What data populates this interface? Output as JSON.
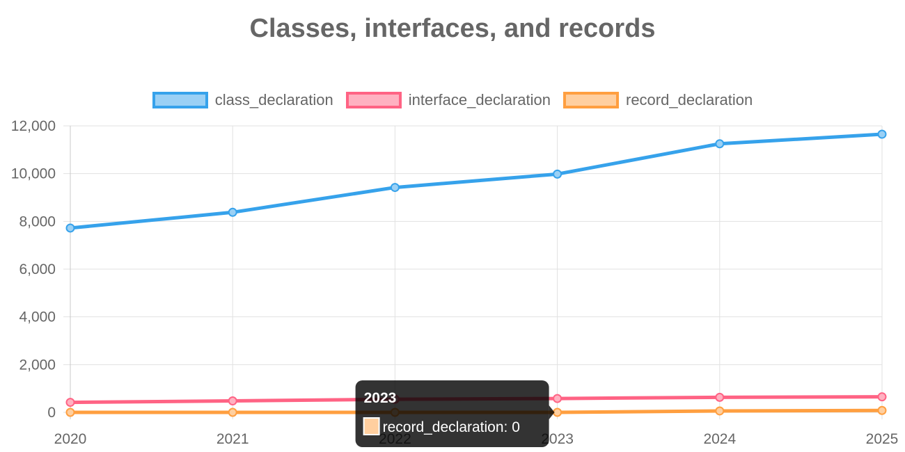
{
  "chart_data": {
    "type": "line",
    "title": "Classes, interfaces, and records",
    "x": [
      "2020",
      "2021",
      "2022",
      "2023",
      "2024",
      "2025"
    ],
    "ylim": [
      0,
      12000
    ],
    "yticks": [
      0,
      2000,
      4000,
      6000,
      8000,
      10000,
      12000
    ],
    "ytick_labels": [
      "0",
      "2,000",
      "4,000",
      "6,000",
      "8,000",
      "10,000",
      "12,000"
    ],
    "grid": true,
    "legend_position": "top",
    "series": [
      {
        "name": "class_declaration",
        "color": "#36a2eb",
        "fill": "#9ad0f5",
        "values": [
          7720,
          8380,
          9420,
          9980,
          11250,
          11650
        ]
      },
      {
        "name": "interface_declaration",
        "color": "#ff6384",
        "fill": "#ffb1c1",
        "values": [
          420,
          480,
          550,
          580,
          630,
          650
        ]
      },
      {
        "name": "record_declaration",
        "color": "#ff9f40",
        "fill": "#ffcf9f",
        "values": [
          0,
          0,
          0,
          0,
          60,
          80
        ]
      }
    ],
    "tooltip": {
      "title": "2023",
      "series_index": 2,
      "point_index": 3,
      "label": "record_declaration: 0"
    }
  }
}
